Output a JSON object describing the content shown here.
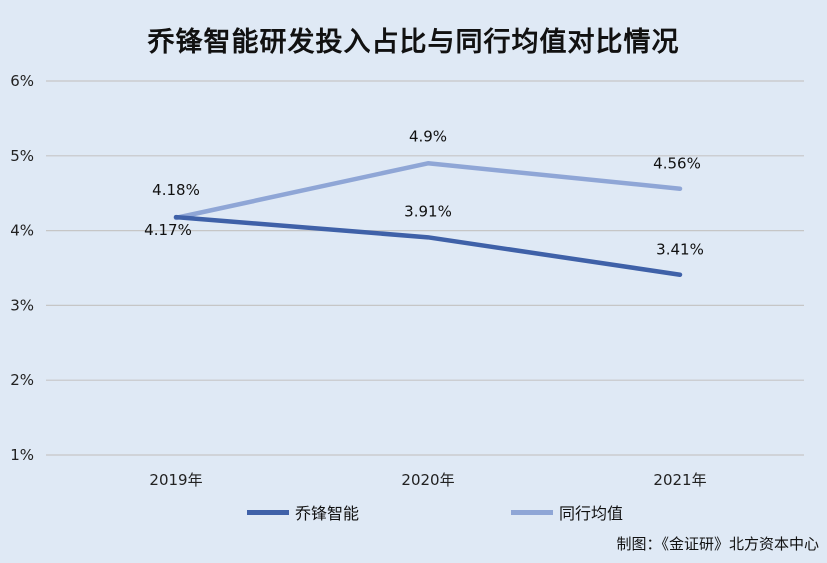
{
  "chart_data": {
    "type": "line",
    "title": "乔锋智能研发投入占比与同行均值对比情况",
    "categories": [
      "2019年",
      "2020年",
      "2021年"
    ],
    "ylim": [
      1,
      6
    ],
    "yticks": [
      1,
      2,
      3,
      4,
      5,
      6
    ],
    "ytick_labels": [
      "1%",
      "2%",
      "3%",
      "4%",
      "5%",
      "6%"
    ],
    "grid": true,
    "legend_position": "bottom",
    "series": [
      {
        "name": "乔锋智能",
        "color": "#3f61a8",
        "values": [
          4.18,
          3.91,
          3.41
        ],
        "labels": [
          "4.18%",
          "3.91%",
          "3.41%"
        ]
      },
      {
        "name": "同行均值",
        "color": "#8fa6d6",
        "values": [
          4.17,
          4.9,
          4.56
        ],
        "labels": [
          "4.17%",
          "4.9%",
          "4.56%"
        ]
      }
    ]
  },
  "source_note": "制图：《金证研》北方资本中心"
}
